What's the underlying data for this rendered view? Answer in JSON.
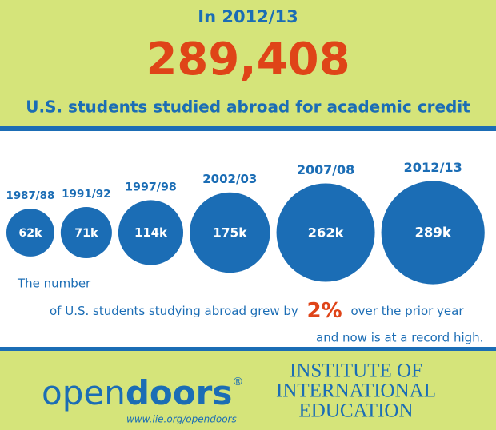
{
  "header": {
    "year_line": "In 2012/13",
    "total": "289,408",
    "subtitle": "U.S. students studied abroad for academic credit"
  },
  "chart_data": {
    "type": "bubble",
    "categories": [
      "1987/88",
      "1991/92",
      "1997/98",
      "2002/03",
      "2007/08",
      "2012/13"
    ],
    "values": [
      62,
      71,
      114,
      175,
      262,
      289
    ],
    "value_labels": [
      "62k",
      "71k",
      "114k",
      "175k",
      "262k",
      "289k"
    ],
    "color": "#1b6db5"
  },
  "note": {
    "line1": "The number",
    "line2_pre": "of U.S. students studying abroad grew by",
    "highlight": "2%",
    "line2_post": "over the prior year",
    "line3": "and now is at a record high."
  },
  "footer": {
    "logo_open": "open",
    "logo_doors": "doors",
    "registered": "®",
    "url": "www.iie.org/opendoors",
    "institute": [
      "INSTITUTE OF",
      "INTERNATIONAL",
      "EDUCATION"
    ]
  }
}
